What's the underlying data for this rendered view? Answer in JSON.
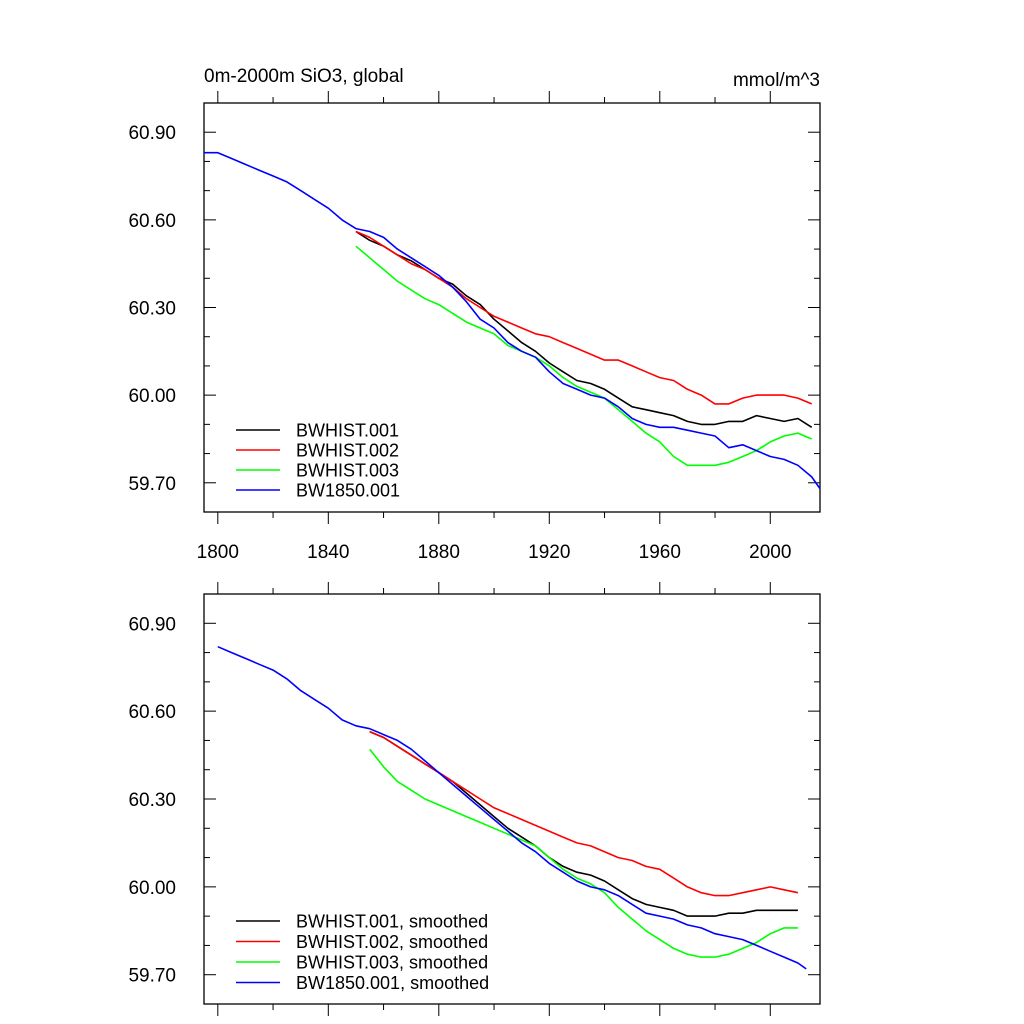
{
  "chart_data": [
    {
      "type": "line",
      "title": "0m-2000m SiO3, global",
      "units": "mmol/m^3",
      "xlim": [
        1795,
        2018
      ],
      "ylim": [
        59.6,
        61.0
      ],
      "xticks": [
        1800,
        1840,
        1880,
        1920,
        1960,
        2000
      ],
      "yticks": [
        59.7,
        60.0,
        60.3,
        60.6,
        60.9
      ],
      "ytick_labels": [
        "59.70",
        "60.00",
        "60.30",
        "60.60",
        "60.90"
      ],
      "xtick_labels": [
        "1800",
        "1840",
        "1880",
        "1920",
        "1960",
        "2000"
      ],
      "legend_position": "bottom-left",
      "series": [
        {
          "name": "BWHIST.001",
          "color": "#000000",
          "x": [
            1850,
            1855,
            1860,
            1865,
            1870,
            1875,
            1880,
            1885,
            1890,
            1895,
            1900,
            1905,
            1910,
            1915,
            1920,
            1925,
            1930,
            1935,
            1940,
            1945,
            1950,
            1955,
            1960,
            1965,
            1970,
            1975,
            1980,
            1985,
            1990,
            1995,
            2000,
            2005,
            2010,
            2015
          ],
          "y": [
            60.56,
            60.53,
            60.51,
            60.48,
            60.46,
            60.43,
            60.4,
            60.38,
            60.34,
            60.31,
            60.26,
            60.22,
            60.18,
            60.15,
            60.11,
            60.08,
            60.05,
            60.04,
            60.02,
            59.99,
            59.96,
            59.95,
            59.94,
            59.93,
            59.91,
            59.9,
            59.9,
            59.91,
            59.91,
            59.93,
            59.92,
            59.91,
            59.92,
            59.89
          ]
        },
        {
          "name": "BWHIST.002",
          "color": "#ff0000",
          "x": [
            1850,
            1855,
            1860,
            1865,
            1870,
            1875,
            1880,
            1885,
            1890,
            1895,
            1900,
            1905,
            1910,
            1915,
            1920,
            1925,
            1930,
            1935,
            1940,
            1945,
            1950,
            1955,
            1960,
            1965,
            1970,
            1975,
            1980,
            1985,
            1990,
            1995,
            2000,
            2005,
            2010,
            2015
          ],
          "y": [
            60.56,
            60.54,
            60.51,
            60.48,
            60.45,
            60.43,
            60.4,
            60.37,
            60.33,
            60.3,
            60.27,
            60.25,
            60.23,
            60.21,
            60.2,
            60.18,
            60.16,
            60.14,
            60.12,
            60.12,
            60.1,
            60.08,
            60.06,
            60.05,
            60.02,
            60.0,
            59.97,
            59.97,
            59.99,
            60.0,
            60.0,
            60.0,
            59.99,
            59.97
          ]
        },
        {
          "name": "BWHIST.003",
          "color": "#00ff00",
          "x": [
            1850,
            1855,
            1860,
            1865,
            1870,
            1875,
            1880,
            1885,
            1890,
            1895,
            1900,
            1905,
            1910,
            1915,
            1920,
            1925,
            1930,
            1935,
            1940,
            1945,
            1950,
            1955,
            1960,
            1965,
            1970,
            1975,
            1980,
            1985,
            1990,
            1995,
            2000,
            2005,
            2010,
            2015
          ],
          "y": [
            60.51,
            60.47,
            60.43,
            60.39,
            60.36,
            60.33,
            60.31,
            60.28,
            60.25,
            60.23,
            60.21,
            60.17,
            60.15,
            60.13,
            60.1,
            60.06,
            60.03,
            60.01,
            59.99,
            59.95,
            59.91,
            59.87,
            59.84,
            59.79,
            59.76,
            59.76,
            59.76,
            59.77,
            59.79,
            59.81,
            59.84,
            59.86,
            59.87,
            59.85
          ]
        },
        {
          "name": "BW1850.001",
          "color": "#0000ff",
          "x": [
            1795,
            1800,
            1805,
            1810,
            1815,
            1820,
            1825,
            1830,
            1835,
            1840,
            1845,
            1850,
            1855,
            1860,
            1865,
            1870,
            1875,
            1880,
            1885,
            1890,
            1895,
            1900,
            1905,
            1910,
            1915,
            1920,
            1925,
            1930,
            1935,
            1940,
            1945,
            1950,
            1955,
            1960,
            1965,
            1970,
            1975,
            1980,
            1985,
            1990,
            1995,
            2000,
            2005,
            2010,
            2015,
            2018
          ],
          "y": [
            60.83,
            60.83,
            60.81,
            60.79,
            60.77,
            60.75,
            60.73,
            60.7,
            60.67,
            60.64,
            60.6,
            60.57,
            60.56,
            60.54,
            60.5,
            60.47,
            60.44,
            60.41,
            60.37,
            60.32,
            60.26,
            60.23,
            60.18,
            60.15,
            60.13,
            60.08,
            60.04,
            60.02,
            60.0,
            59.99,
            59.96,
            59.92,
            59.9,
            59.89,
            59.89,
            59.88,
            59.87,
            59.86,
            59.82,
            59.83,
            59.81,
            59.79,
            59.78,
            59.76,
            59.72,
            59.68
          ]
        }
      ]
    },
    {
      "type": "line",
      "xlim": [
        1795,
        2018
      ],
      "ylim": [
        59.6,
        61.0
      ],
      "xticks": [
        1800,
        1840,
        1880,
        1920,
        1960,
        2000
      ],
      "yticks": [
        59.7,
        60.0,
        60.3,
        60.6,
        60.9
      ],
      "ytick_labels": [
        "59.70",
        "60.00",
        "60.30",
        "60.60",
        "60.90"
      ],
      "legend_position": "bottom-left",
      "series": [
        {
          "name": "BWHIST.001, smoothed",
          "color": "#000000",
          "x": [
            1855,
            1860,
            1865,
            1870,
            1875,
            1880,
            1885,
            1890,
            1895,
            1900,
            1905,
            1910,
            1915,
            1920,
            1925,
            1930,
            1935,
            1940,
            1945,
            1950,
            1955,
            1960,
            1965,
            1970,
            1975,
            1980,
            1985,
            1990,
            1995,
            2000,
            2005,
            2010
          ],
          "y": [
            60.53,
            60.51,
            60.48,
            60.45,
            60.42,
            60.39,
            60.36,
            60.32,
            60.28,
            60.24,
            60.2,
            60.17,
            60.14,
            60.1,
            60.07,
            60.05,
            60.04,
            60.02,
            59.99,
            59.96,
            59.94,
            59.93,
            59.92,
            59.9,
            59.9,
            59.9,
            59.91,
            59.91,
            59.92,
            59.92,
            59.92,
            59.92
          ]
        },
        {
          "name": "BWHIST.002, smoothed",
          "color": "#ff0000",
          "x": [
            1855,
            1860,
            1865,
            1870,
            1875,
            1880,
            1885,
            1890,
            1895,
            1900,
            1905,
            1910,
            1915,
            1920,
            1925,
            1930,
            1935,
            1940,
            1945,
            1950,
            1955,
            1960,
            1965,
            1970,
            1975,
            1980,
            1985,
            1990,
            1995,
            2000,
            2005,
            2010
          ],
          "y": [
            60.53,
            60.51,
            60.48,
            60.45,
            60.42,
            60.39,
            60.36,
            60.33,
            60.3,
            60.27,
            60.25,
            60.23,
            60.21,
            60.19,
            60.17,
            60.15,
            60.14,
            60.12,
            60.1,
            60.09,
            60.07,
            60.06,
            60.03,
            60.0,
            59.98,
            59.97,
            59.97,
            59.98,
            59.99,
            60.0,
            59.99,
            59.98
          ]
        },
        {
          "name": "BWHIST.003, smoothed",
          "color": "#00ff00",
          "x": [
            1855,
            1860,
            1865,
            1870,
            1875,
            1880,
            1885,
            1890,
            1895,
            1900,
            1905,
            1910,
            1915,
            1920,
            1925,
            1930,
            1935,
            1940,
            1945,
            1950,
            1955,
            1960,
            1965,
            1970,
            1975,
            1980,
            1985,
            1990,
            1995,
            2000,
            2005,
            2010
          ],
          "y": [
            60.47,
            60.41,
            60.36,
            60.33,
            60.3,
            60.28,
            60.26,
            60.24,
            60.22,
            60.2,
            60.18,
            60.16,
            60.14,
            60.1,
            60.06,
            60.03,
            60.01,
            59.98,
            59.93,
            59.89,
            59.85,
            59.82,
            59.79,
            59.77,
            59.76,
            59.76,
            59.77,
            59.79,
            59.81,
            59.84,
            59.86,
            59.86
          ]
        },
        {
          "name": "BW1850.001, smoothed",
          "color": "#0000ff",
          "x": [
            1800,
            1805,
            1810,
            1815,
            1820,
            1825,
            1830,
            1835,
            1840,
            1845,
            1850,
            1855,
            1860,
            1865,
            1870,
            1875,
            1880,
            1885,
            1890,
            1895,
            1900,
            1905,
            1910,
            1915,
            1920,
            1925,
            1930,
            1935,
            1940,
            1945,
            1950,
            1955,
            1960,
            1965,
            1970,
            1975,
            1980,
            1985,
            1990,
            1995,
            2000,
            2005,
            2010,
            2013
          ],
          "y": [
            60.82,
            60.8,
            60.78,
            60.76,
            60.74,
            60.71,
            60.67,
            60.64,
            60.61,
            60.57,
            60.55,
            60.54,
            60.52,
            60.5,
            60.47,
            60.43,
            60.39,
            60.35,
            60.31,
            60.27,
            60.23,
            60.19,
            60.15,
            60.12,
            60.08,
            60.05,
            60.02,
            60.0,
            59.99,
            59.97,
            59.94,
            59.91,
            59.9,
            59.89,
            59.87,
            59.86,
            59.84,
            59.83,
            59.82,
            59.8,
            59.78,
            59.76,
            59.74,
            59.72
          ]
        }
      ]
    }
  ]
}
